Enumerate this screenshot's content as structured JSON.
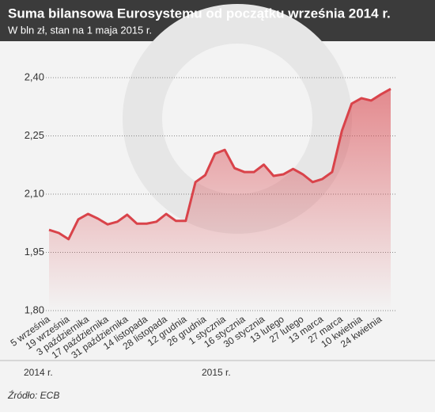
{
  "chart_data": {
    "type": "line",
    "title": "Suma bilansowa Eurosystemu od początku września 2014 r.",
    "subtitle": "W bln zł, stan na 1 maja 2015 r.",
    "categories": [
      "5 września",
      null,
      "19 września",
      null,
      "3 października",
      null,
      "17 października",
      null,
      "31 października",
      null,
      "14 listopada",
      null,
      "28 listopada",
      null,
      "12 grudnia",
      null,
      "26 grudnia",
      null,
      "1 stycznia",
      null,
      "16 stycznia",
      null,
      "30 stycznia",
      null,
      "13 lutego",
      null,
      "27 lutego",
      null,
      "13 marca",
      null,
      "27 marca",
      null,
      "10 kwietnia",
      null,
      "24 kwietnia",
      null
    ],
    "series": [
      {
        "color": "#d9434a",
        "values": [
          2.008,
          2.0,
          1.984,
          2.035,
          2.049,
          2.037,
          2.022,
          2.029,
          2.047,
          2.024,
          2.024,
          2.029,
          2.049,
          2.031,
          2.031,
          2.131,
          2.149,
          2.204,
          2.214,
          2.167,
          2.157,
          2.157,
          2.176,
          2.147,
          2.151,
          2.165,
          2.151,
          2.131,
          2.139,
          2.157,
          2.263,
          2.333,
          2.347,
          2.341,
          2.357,
          2.371
        ]
      }
    ],
    "ylim": [
      1.8,
      2.4
    ],
    "yticks": [
      {
        "value": 1.8,
        "label": "1,80"
      },
      {
        "value": 1.95,
        "label": "1,95"
      },
      {
        "value": 2.1,
        "label": "2,10"
      },
      {
        "value": 2.25,
        "label": "2,25"
      },
      {
        "value": 2.4,
        "label": "2,40"
      }
    ],
    "grid": true,
    "annotations": [
      "2014 r.",
      "2015 r."
    ],
    "source": "Źródło: ECB"
  }
}
